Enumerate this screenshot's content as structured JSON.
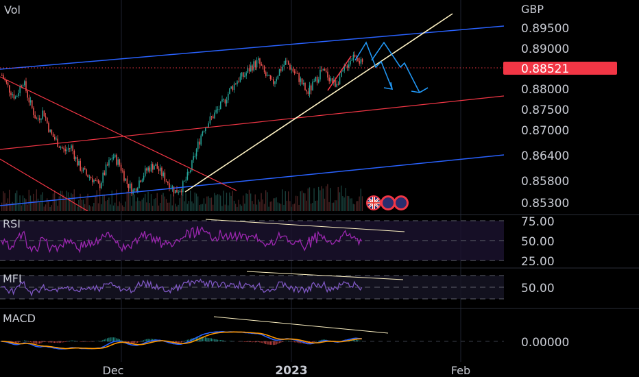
{
  "header": {
    "indicator_label": "Vol",
    "currency": "GBP"
  },
  "price_axis": {
    "ticks": [
      "0.89500",
      "0.89000",
      "0.88000",
      "0.87500",
      "0.87000",
      "0.86400",
      "0.85800",
      "0.85300"
    ],
    "current_price": "0.88521",
    "current_price_color": "#f23645"
  },
  "rsi_pane": {
    "title": "RSI",
    "ticks": [
      "75.00",
      "50.00",
      "25.00"
    ],
    "line_color": "#9c27b0"
  },
  "mfi_pane": {
    "title": "MFI",
    "ticks": [
      "50.00"
    ],
    "line_color": "#7e57c2"
  },
  "macd_pane": {
    "title": "MACD",
    "ticks": [
      "0.00000"
    ],
    "macd_color": "#2962ff",
    "signal_color": "#ff9800"
  },
  "time_axis": {
    "labels": [
      "Dec",
      "2023",
      "Feb"
    ]
  },
  "colors": {
    "up": "#26a69a",
    "down": "#ef5350",
    "channel_blue": "#2962ff",
    "channel_red": "#f23645",
    "trend_yellow": "#fff3c4"
  },
  "chart_data": {
    "type": "candlestick",
    "symbol_quote_currency": "GBP",
    "current_price": 0.88521,
    "price_range": [
      0.853,
      0.897
    ],
    "x_labels": [
      "Dec",
      "2023",
      "Feb"
    ],
    "close_path": [
      0.884,
      0.881,
      0.879,
      0.883,
      0.878,
      0.874,
      0.876,
      0.871,
      0.869,
      0.867,
      0.868,
      0.864,
      0.862,
      0.861,
      0.859,
      0.863,
      0.866,
      0.864,
      0.86,
      0.858,
      0.861,
      0.863,
      0.864,
      0.862,
      0.86,
      0.858,
      0.859,
      0.862,
      0.867,
      0.872,
      0.874,
      0.876,
      0.878,
      0.881,
      0.883,
      0.884,
      0.886,
      0.887,
      0.884,
      0.882,
      0.885,
      0.887,
      0.885,
      0.883,
      0.88,
      0.882,
      0.885,
      0.884,
      0.882,
      0.884,
      0.887,
      0.889,
      0.886
    ],
    "indicators": [
      "RSI",
      "MFI",
      "MACD"
    ]
  }
}
